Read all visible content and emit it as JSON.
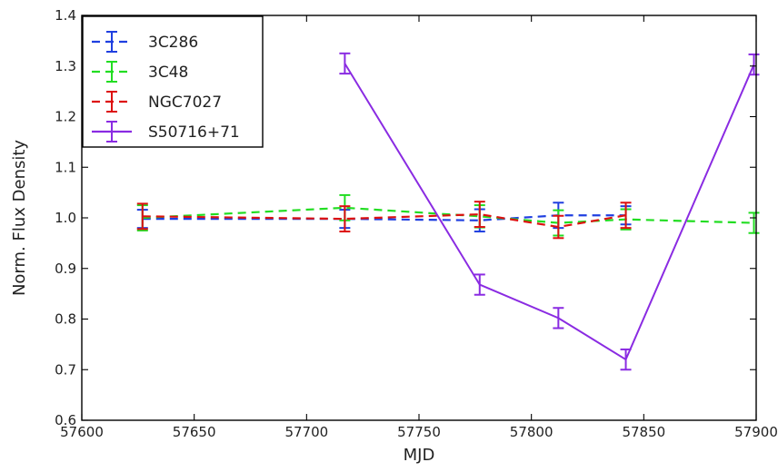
{
  "chart_data": {
    "type": "line",
    "title": "",
    "xlabel": "MJD",
    "ylabel": "Norm. Flux Density",
    "xlim": [
      57600,
      57900
    ],
    "ylim": [
      0.6,
      1.4
    ],
    "x_ticks": [
      57600,
      57650,
      57700,
      57750,
      57800,
      57850,
      57900
    ],
    "y_ticks": [
      0.6,
      0.7,
      0.8,
      0.9,
      1.0,
      1.1,
      1.2,
      1.3,
      1.4
    ],
    "x_tick_labels": [
      "57600",
      "57650",
      "57700",
      "57750",
      "57800",
      "57850",
      "57900"
    ],
    "y_tick_labels": [
      "0.6",
      "0.7",
      "0.8",
      "0.9",
      "1.0",
      "1.1",
      "1.2",
      "1.3",
      "1.4"
    ],
    "grid": false,
    "legend_position": "top-left",
    "error_bars": true,
    "series": [
      {
        "name": "3C286",
        "color": "#1f3fe0",
        "style": "dashed",
        "x": [
          57627,
          57717,
          57777,
          57812,
          57842
        ],
        "y": [
          0.998,
          0.998,
          0.995,
          1.005,
          1.005
        ],
        "err": [
          0.018,
          0.018,
          0.022,
          0.025,
          0.018
        ]
      },
      {
        "name": "3C48",
        "color": "#22dd22",
        "style": "dashed",
        "x": [
          57627,
          57717,
          57777,
          57812,
          57842,
          57899
        ],
        "y": [
          1.0,
          1.02,
          1.003,
          0.99,
          0.997,
          0.99
        ],
        "err": [
          0.025,
          0.025,
          0.022,
          0.025,
          0.02,
          0.02
        ]
      },
      {
        "name": "NGC7027",
        "color": "#dd1111",
        "style": "dashed",
        "x": [
          57627,
          57717,
          57777,
          57812,
          57842
        ],
        "y": [
          1.003,
          0.998,
          1.007,
          0.982,
          1.005
        ],
        "err": [
          0.025,
          0.025,
          0.025,
          0.022,
          0.025
        ]
      },
      {
        "name": "S50716+71",
        "color": "#8a2be2",
        "style": "solid",
        "x": [
          57717,
          57777,
          57812,
          57842,
          57899
        ],
        "y": [
          1.305,
          0.868,
          0.802,
          0.72,
          1.303
        ],
        "err": [
          0.02,
          0.02,
          0.02,
          0.02,
          0.02
        ]
      }
    ]
  }
}
